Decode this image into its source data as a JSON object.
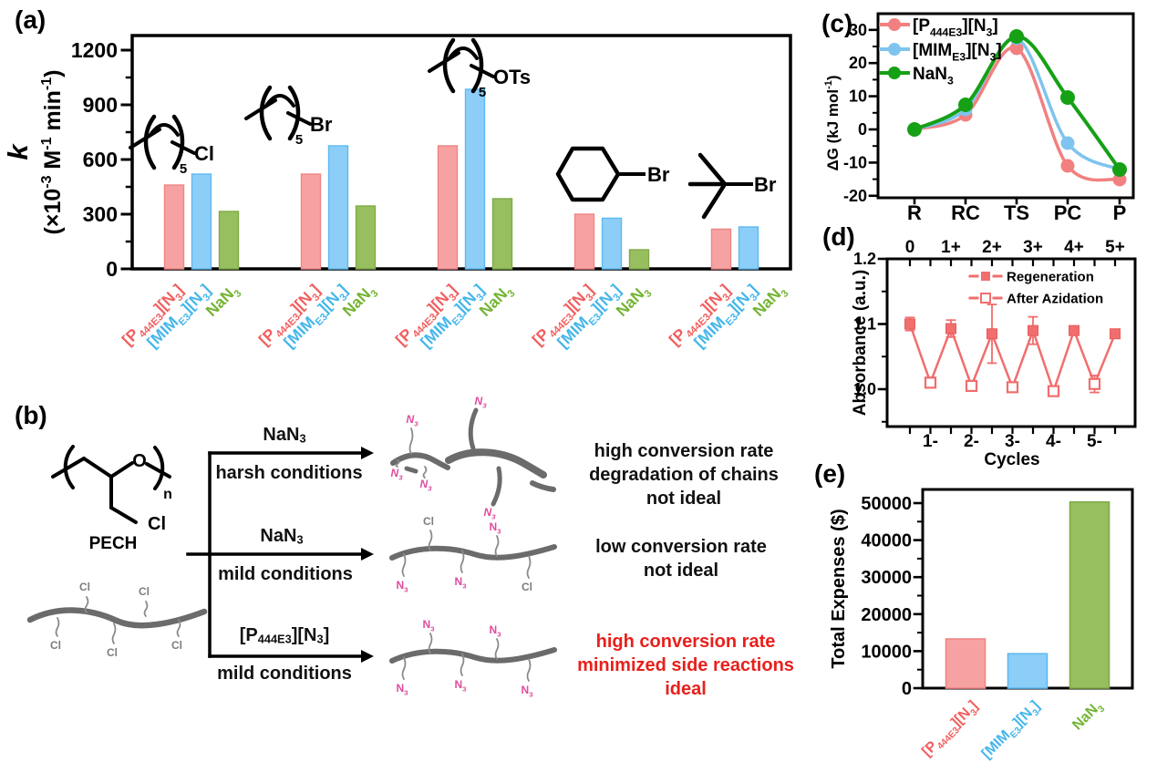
{
  "panels": {
    "a": {
      "tag": "(a)"
    },
    "b": {
      "tag": "(b)",
      "polymer_name": "PECH",
      "atom_labels": {
        "oxygen": "O",
        "chlorine": "Cl",
        "azide": "N~3~",
        "repeat": "n"
      },
      "routes": [
        {
          "reagent": "NaN~3~",
          "condition": "harsh conditions",
          "outcome_lines": [
            "high conversion rate",
            "degradation of chains",
            "not ideal"
          ],
          "outcome_color": "#111111",
          "product": "degraded-azide-chains"
        },
        {
          "reagent": "NaN~3~",
          "condition": "mild conditions",
          "outcome_lines": [
            "low conversion rate",
            "not ideal"
          ],
          "outcome_color": "#111111",
          "product": "partial-azide-chain"
        },
        {
          "reagent": "[P~444E3~][N~3~]",
          "condition": "mild conditions",
          "outcome_lines": [
            "high conversion rate",
            "minimized side reactions",
            "ideal"
          ],
          "outcome_color": "#E8201C",
          "product": "full-azide-chain"
        }
      ]
    },
    "c": {
      "tag": "(c)"
    },
    "d": {
      "tag": "(d)"
    },
    "e": {
      "tag": "(e)"
    }
  },
  "catalysts": [
    {
      "label": "[P~444E3~][N~3~]",
      "bar_fill": "#F7A2A2",
      "bar_stroke": "#EF8585",
      "text_color": "#F15F5F",
      "line_color": "#F28080"
    },
    {
      "label": "[MIM~E3~][N~3~]",
      "bar_fill": "#8CCEF8",
      "bar_stroke": "#5FB9F0",
      "text_color": "#45B6EA",
      "line_color": "#7EC4EE"
    },
    {
      "label": "NaN~3~",
      "bar_fill": "#97BF5F",
      "bar_stroke": "#7FAB46",
      "text_color": "#74B433",
      "line_color": "#16A016"
    }
  ],
  "colors": {
    "salmon": "#F06E6E",
    "salmon_dark": "#E85C5C",
    "azide_pink": "#DE4B9E",
    "chain_gray": "#6B6B6B",
    "pendant_gray": "#8A8A8A",
    "cl_gray": "#7D7D7D",
    "red_text": "#E8201C",
    "axis_black": "#000000"
  },
  "chart_data": [
    {
      "id": "a",
      "type": "bar",
      "ylabel_line1": "k",
      "ylabel_line2": "(×10^-3^ M^-1^ min^-1^)",
      "ylim": [
        0,
        1280
      ],
      "yticks": [
        0,
        300,
        600,
        900,
        1200
      ],
      "yticks_minor": [
        150,
        450,
        750,
        1050
      ],
      "series_labels": [
        "[P~444E3~][N~3~]",
        "[MIM~E3~][N~3~]",
        "NaN~3~"
      ],
      "groups": [
        {
          "substrate_icon": "hexyl-chain",
          "substrate_label": "Cl",
          "values": [
            460,
            520,
            315
          ]
        },
        {
          "substrate_icon": "hexyl-chain",
          "substrate_label": "Br",
          "values": [
            520,
            675,
            345
          ]
        },
        {
          "substrate_icon": "hexyl-chain",
          "substrate_label": "OTs",
          "values": [
            675,
            985,
            385
          ]
        },
        {
          "substrate_icon": "cyclohexane",
          "substrate_label": "Br",
          "values": [
            300,
            278,
            105
          ]
        },
        {
          "substrate_icon": "tert-butyl",
          "substrate_label": "Br",
          "values": [
            218,
            230,
            null
          ]
        }
      ]
    },
    {
      "id": "c",
      "type": "line",
      "ylabel": "ΔG (kJ mol^-1^)",
      "categories": [
        "R",
        "RC",
        "TS",
        "PC",
        "P"
      ],
      "ylim": [
        -20,
        32
      ],
      "yticks": [
        -20,
        -10,
        0,
        10,
        20,
        30
      ],
      "yticks_minor": [
        -15,
        -5,
        5,
        15,
        25
      ],
      "legend_position": "top-left",
      "series": [
        {
          "name": "[P~444E3~][N~3~]",
          "values": [
            0,
            4.5,
            24.5,
            -11,
            -15
          ]
        },
        {
          "name": "[MIM~E3~][N~3~]",
          "values": [
            0,
            6,
            27.5,
            -4,
            -12
          ]
        },
        {
          "name": "NaN~3~",
          "values": [
            0,
            7.5,
            28,
            9.5,
            -12
          ]
        }
      ]
    },
    {
      "id": "d",
      "type": "line",
      "ylabel": "Absorbance (a.u.)",
      "xlabel": "Cycles",
      "ylim": [
        0.94,
        1.2
      ],
      "yticks": [
        "1.0",
        "1.1",
        "1.2"
      ],
      "yticks_minor": [
        0.95,
        1.05,
        1.15
      ],
      "top_axis_labels": [
        "0",
        "1+",
        "2+",
        "3+",
        "4+",
        "5+"
      ],
      "bottom_axis_labels": [
        "1-",
        "2-",
        "3-",
        "4-",
        "5-"
      ],
      "series": [
        {
          "name": "Regeneration",
          "marker": "filled-square",
          "x": [
            0,
            2,
            4,
            6,
            8,
            10
          ],
          "y": [
            1.1,
            1.093,
            1.085,
            1.09,
            1.09,
            1.085
          ],
          "yerr": [
            0.01,
            0.013,
            0.045,
            0.021,
            0.004,
            0.004
          ]
        },
        {
          "name": "After Azidation",
          "marker": "open-square",
          "x": [
            1,
            3,
            5,
            7,
            9
          ],
          "y": [
            1.01,
            1.005,
            1.003,
            0.997,
            1.008
          ],
          "yerr": [
            0.008,
            0.006,
            0.004,
            0.007,
            0.013
          ]
        }
      ]
    },
    {
      "id": "e",
      "type": "bar",
      "ylabel": "Total Expenses ($)",
      "categories": [
        "[P~444E3~][N~3~]",
        "[MIM~E3~][N~3~]",
        "NaN~3~"
      ],
      "values": [
        13300,
        9300,
        50300
      ],
      "ylim": [
        0,
        53700
      ],
      "yticks": [
        0,
        10000,
        20000,
        30000,
        40000,
        50000
      ],
      "yticks_minor": [
        5000,
        15000,
        25000,
        35000,
        45000
      ]
    }
  ]
}
